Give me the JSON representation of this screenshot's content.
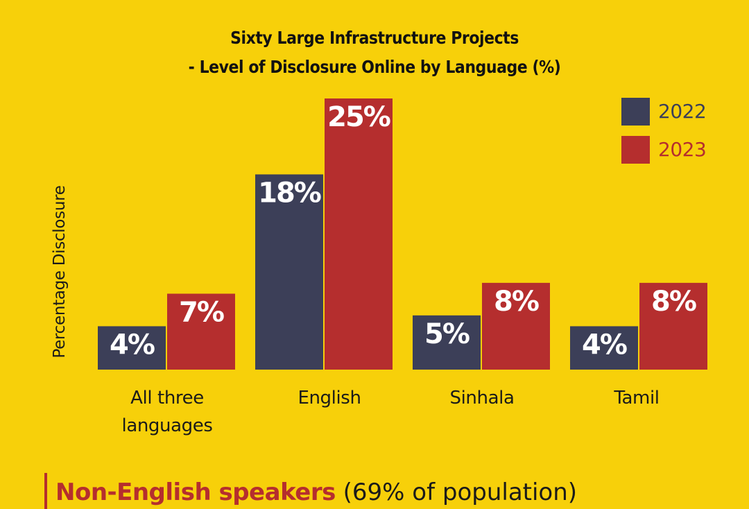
{
  "chart_data": {
    "type": "bar",
    "title_lines": [
      "Sixty Large Infrastructure Projects",
      "- Level of Disclosure Online by Language (%)"
    ],
    "ylabel": "Percentage Disclosure",
    "ylim": [
      0,
      25
    ],
    "grid": false,
    "legend_position": "top-right",
    "categories": [
      "All three\nlanguages",
      "English",
      "Sinhala",
      "Tamil"
    ],
    "series": [
      {
        "name": "2022",
        "color": "#3c3f58",
        "values": [
          4,
          18,
          5,
          4
        ],
        "labels": [
          "4%",
          "18%",
          "5%",
          "4%"
        ]
      },
      {
        "name": "2023",
        "color": "#b52e2e",
        "values": [
          7,
          25,
          8,
          8
        ],
        "labels": [
          "7%",
          "25%",
          "8%",
          "8%"
        ]
      }
    ]
  },
  "callout": {
    "highlight": "Non-English speakers",
    "rest": "(69% of population)"
  }
}
